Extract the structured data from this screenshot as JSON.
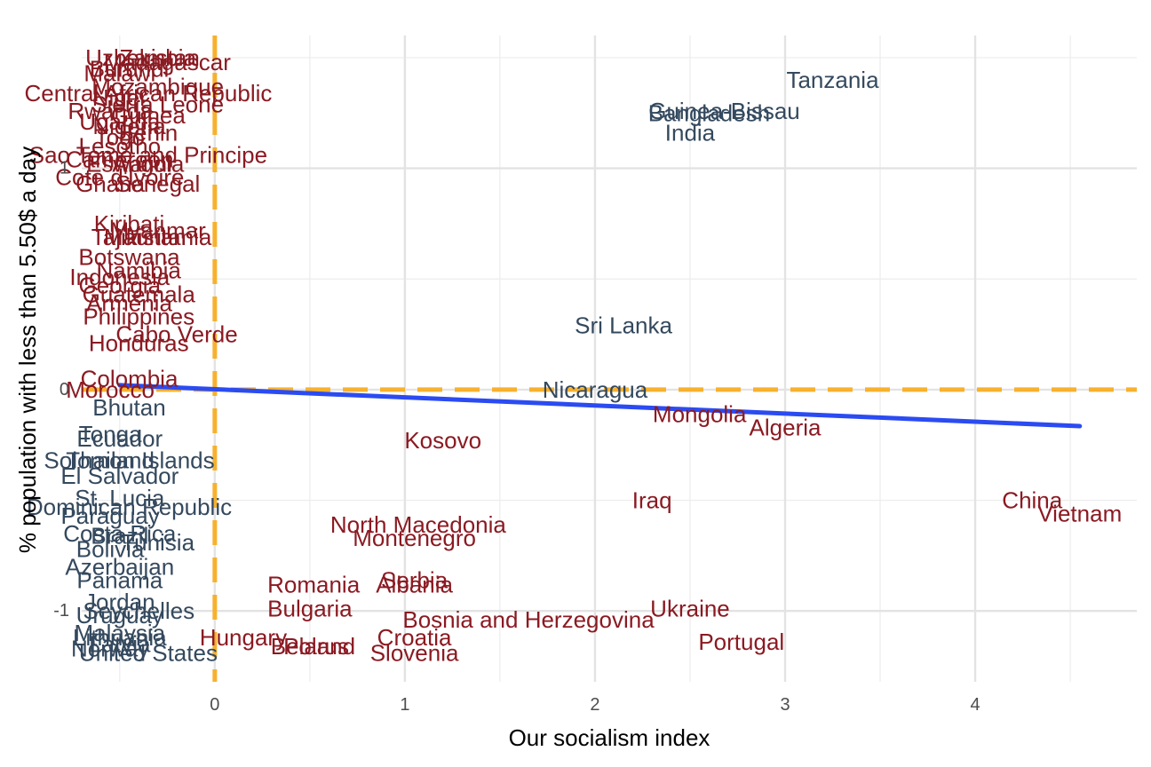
{
  "chart_data": {
    "type": "scatter",
    "title": "",
    "xlabel": "Our socialism index",
    "ylabel": "% population with less than 5.50$ a day",
    "xlim": [
      -0.7,
      4.85
    ],
    "ylim": [
      -1.32,
      1.6
    ],
    "x_ticks": [
      0,
      1,
      2,
      3,
      4
    ],
    "y_ticks": [
      -1,
      0,
      1
    ],
    "x_tick_labels": [
      "0",
      "1",
      "2",
      "3",
      "4"
    ],
    "y_tick_labels": [
      "-1",
      "0",
      "1"
    ],
    "grid": true,
    "legend": "none",
    "reference_lines": {
      "x": 0,
      "y": 0,
      "color": "#F7B12E",
      "style": "dashed"
    },
    "trend_line": {
      "x": [
        -0.5,
        4.55
      ],
      "y": [
        0.02,
        -0.165
      ],
      "color": "#2B4BF2"
    },
    "colors": {
      "above_trend": "#8B1A22",
      "below_trend": "#34495E"
    },
    "points": [
      {
        "label": "Tanzania",
        "x": 3.25,
        "y": 1.4,
        "group": "below"
      },
      {
        "label": "Guinea-Bissau",
        "x": 2.68,
        "y": 1.26,
        "group": "below"
      },
      {
        "label": "Bangladesh",
        "x": 2.6,
        "y": 1.25,
        "group": "below"
      },
      {
        "label": "India",
        "x": 2.5,
        "y": 1.16,
        "group": "below"
      },
      {
        "label": "Sri Lanka",
        "x": 2.15,
        "y": 0.29,
        "group": "below"
      },
      {
        "label": "Nicaragua",
        "x": 2.0,
        "y": 0.0,
        "group": "below"
      },
      {
        "label": "Mongolia",
        "x": 2.55,
        "y": -0.11,
        "group": "above"
      },
      {
        "label": "Algeria",
        "x": 3.0,
        "y": -0.17,
        "group": "above"
      },
      {
        "label": "Kosovo",
        "x": 1.2,
        "y": -0.23,
        "group": "above"
      },
      {
        "label": "Iraq",
        "x": 2.3,
        "y": -0.5,
        "group": "above"
      },
      {
        "label": "China",
        "x": 4.3,
        "y": -0.5,
        "group": "above"
      },
      {
        "label": "Vietnam",
        "x": 4.55,
        "y": -0.56,
        "group": "above"
      },
      {
        "label": "North Macedonia",
        "x": 1.07,
        "y": -0.61,
        "group": "above"
      },
      {
        "label": "Montenegro",
        "x": 1.05,
        "y": -0.67,
        "group": "above"
      },
      {
        "label": "Serbia",
        "x": 1.05,
        "y": -0.86,
        "group": "above"
      },
      {
        "label": "Romania",
        "x": 0.52,
        "y": -0.88,
        "group": "above"
      },
      {
        "label": "Albania",
        "x": 1.05,
        "y": -0.88,
        "group": "above"
      },
      {
        "label": "Bulgaria",
        "x": 0.5,
        "y": -0.99,
        "group": "above"
      },
      {
        "label": "Ukraine",
        "x": 2.5,
        "y": -0.99,
        "group": "above"
      },
      {
        "label": "Bosnia and Herzegovina",
        "x": 1.65,
        "y": -1.04,
        "group": "above"
      },
      {
        "label": "Croatia",
        "x": 1.05,
        "y": -1.12,
        "group": "above"
      },
      {
        "label": "Portugal",
        "x": 2.77,
        "y": -1.14,
        "group": "above"
      },
      {
        "label": "Hungary",
        "x": 0.15,
        "y": -1.12,
        "group": "above"
      },
      {
        "label": "Belarus",
        "x": 0.5,
        "y": -1.16,
        "group": "above"
      },
      {
        "label": "Poland",
        "x": 0.55,
        "y": -1.16,
        "group": "above"
      },
      {
        "label": "Slovenia",
        "x": 1.05,
        "y": -1.19,
        "group": "above"
      },
      {
        "label": "Uzbekistan",
        "x": -0.38,
        "y": 1.5,
        "group": "above"
      },
      {
        "label": "Zambia",
        "x": -0.3,
        "y": 1.5,
        "group": "above"
      },
      {
        "label": "Madagascar",
        "x": -0.25,
        "y": 1.48,
        "group": "above"
      },
      {
        "label": "Burundi",
        "x": -0.45,
        "y": 1.45,
        "group": "above"
      },
      {
        "label": "Malawi",
        "x": -0.5,
        "y": 1.43,
        "group": "above"
      },
      {
        "label": "Mozambique",
        "x": -0.3,
        "y": 1.37,
        "group": "above"
      },
      {
        "label": "Central African Republic",
        "x": -0.35,
        "y": 1.34,
        "group": "above"
      },
      {
        "label": "Niger",
        "x": -0.5,
        "y": 1.32,
        "group": "above"
      },
      {
        "label": "Sierra Leone",
        "x": -0.3,
        "y": 1.29,
        "group": "above"
      },
      {
        "label": "Rwanda",
        "x": -0.55,
        "y": 1.26,
        "group": "above"
      },
      {
        "label": "Guinea",
        "x": -0.35,
        "y": 1.24,
        "group": "above"
      },
      {
        "label": "Uganda",
        "x": -0.5,
        "y": 1.21,
        "group": "above"
      },
      {
        "label": "Nigeria",
        "x": -0.45,
        "y": 1.19,
        "group": "above"
      },
      {
        "label": "Benin",
        "x": -0.35,
        "y": 1.16,
        "group": "above"
      },
      {
        "label": "Togo",
        "x": -0.5,
        "y": 1.14,
        "group": "above"
      },
      {
        "label": "Lesotho",
        "x": -0.5,
        "y": 1.1,
        "group": "above"
      },
      {
        "label": "Sao Tome and Principe",
        "x": -0.35,
        "y": 1.06,
        "group": "above"
      },
      {
        "label": "Cameroon",
        "x": -0.5,
        "y": 1.04,
        "group": "above"
      },
      {
        "label": "Eswatini",
        "x": -0.45,
        "y": 1.02,
        "group": "above"
      },
      {
        "label": "Angola",
        "x": -0.35,
        "y": 1.02,
        "group": "above"
      },
      {
        "label": "Cote d'Ivoire",
        "x": -0.5,
        "y": 0.96,
        "group": "above"
      },
      {
        "label": "Senegal",
        "x": -0.3,
        "y": 0.93,
        "group": "above"
      },
      {
        "label": "Ghana",
        "x": -0.55,
        "y": 0.93,
        "group": "above"
      },
      {
        "label": "Kiribati",
        "x": -0.45,
        "y": 0.75,
        "group": "above"
      },
      {
        "label": "Myanmar",
        "x": -0.3,
        "y": 0.72,
        "group": "above"
      },
      {
        "label": "Tajikistan",
        "x": -0.4,
        "y": 0.69,
        "group": "above"
      },
      {
        "label": "Mauritania",
        "x": -0.3,
        "y": 0.69,
        "group": "above"
      },
      {
        "label": "Botswana",
        "x": -0.45,
        "y": 0.6,
        "group": "above"
      },
      {
        "label": "Namibia",
        "x": -0.4,
        "y": 0.54,
        "group": "above"
      },
      {
        "label": "Indonesia",
        "x": -0.5,
        "y": 0.51,
        "group": "above"
      },
      {
        "label": "Georgia",
        "x": -0.5,
        "y": 0.47,
        "group": "above"
      },
      {
        "label": "Guatemala",
        "x": -0.4,
        "y": 0.43,
        "group": "above"
      },
      {
        "label": "Armenia",
        "x": -0.45,
        "y": 0.39,
        "group": "above"
      },
      {
        "label": "Philippines",
        "x": -0.4,
        "y": 0.33,
        "group": "above"
      },
      {
        "label": "Cabo Verde",
        "x": -0.2,
        "y": 0.25,
        "group": "above"
      },
      {
        "label": "Honduras",
        "x": -0.4,
        "y": 0.21,
        "group": "above"
      },
      {
        "label": "Colombia",
        "x": -0.45,
        "y": 0.05,
        "group": "above"
      },
      {
        "label": "Morocco",
        "x": -0.55,
        "y": 0.0,
        "group": "above"
      },
      {
        "label": "Bhutan",
        "x": -0.45,
        "y": -0.08,
        "group": "below"
      },
      {
        "label": "Tonga",
        "x": -0.55,
        "y": -0.2,
        "group": "below"
      },
      {
        "label": "Ecuador",
        "x": -0.5,
        "y": -0.22,
        "group": "below"
      },
      {
        "label": "Solomon Islands",
        "x": -0.45,
        "y": -0.32,
        "group": "below"
      },
      {
        "label": "Thailand",
        "x": -0.55,
        "y": -0.32,
        "group": "below"
      },
      {
        "label": "El Salvador",
        "x": -0.5,
        "y": -0.39,
        "group": "below"
      },
      {
        "label": "St. Lucia",
        "x": -0.5,
        "y": -0.49,
        "group": "below"
      },
      {
        "label": "Dominican Republic",
        "x": -0.45,
        "y": -0.53,
        "group": "below"
      },
      {
        "label": "Paraguay",
        "x": -0.55,
        "y": -0.57,
        "group": "below"
      },
      {
        "label": "Costa Rica",
        "x": -0.5,
        "y": -0.65,
        "group": "below"
      },
      {
        "label": "Brazil",
        "x": -0.5,
        "y": -0.66,
        "group": "below"
      },
      {
        "label": "Tunisia",
        "x": -0.3,
        "y": -0.69,
        "group": "below"
      },
      {
        "label": "Bolivia",
        "x": -0.55,
        "y": -0.72,
        "group": "below"
      },
      {
        "label": "Azerbaijan",
        "x": -0.5,
        "y": -0.8,
        "group": "below"
      },
      {
        "label": "Panama",
        "x": -0.5,
        "y": -0.86,
        "group": "below"
      },
      {
        "label": "Jordan",
        "x": -0.5,
        "y": -0.96,
        "group": "below"
      },
      {
        "label": "Seychelles",
        "x": -0.4,
        "y": -1.0,
        "group": "below"
      },
      {
        "label": "Uruguay",
        "x": -0.5,
        "y": -1.02,
        "group": "below"
      },
      {
        "label": "Malaysia",
        "x": -0.5,
        "y": -1.1,
        "group": "below"
      },
      {
        "label": "Lithuania",
        "x": -0.5,
        "y": -1.12,
        "group": "below"
      },
      {
        "label": "Latvia",
        "x": -0.5,
        "y": -1.15,
        "group": "below"
      },
      {
        "label": "Norway",
        "x": -0.55,
        "y": -1.17,
        "group": "below"
      },
      {
        "label": "United States",
        "x": -0.35,
        "y": -1.19,
        "group": "below"
      }
    ]
  }
}
